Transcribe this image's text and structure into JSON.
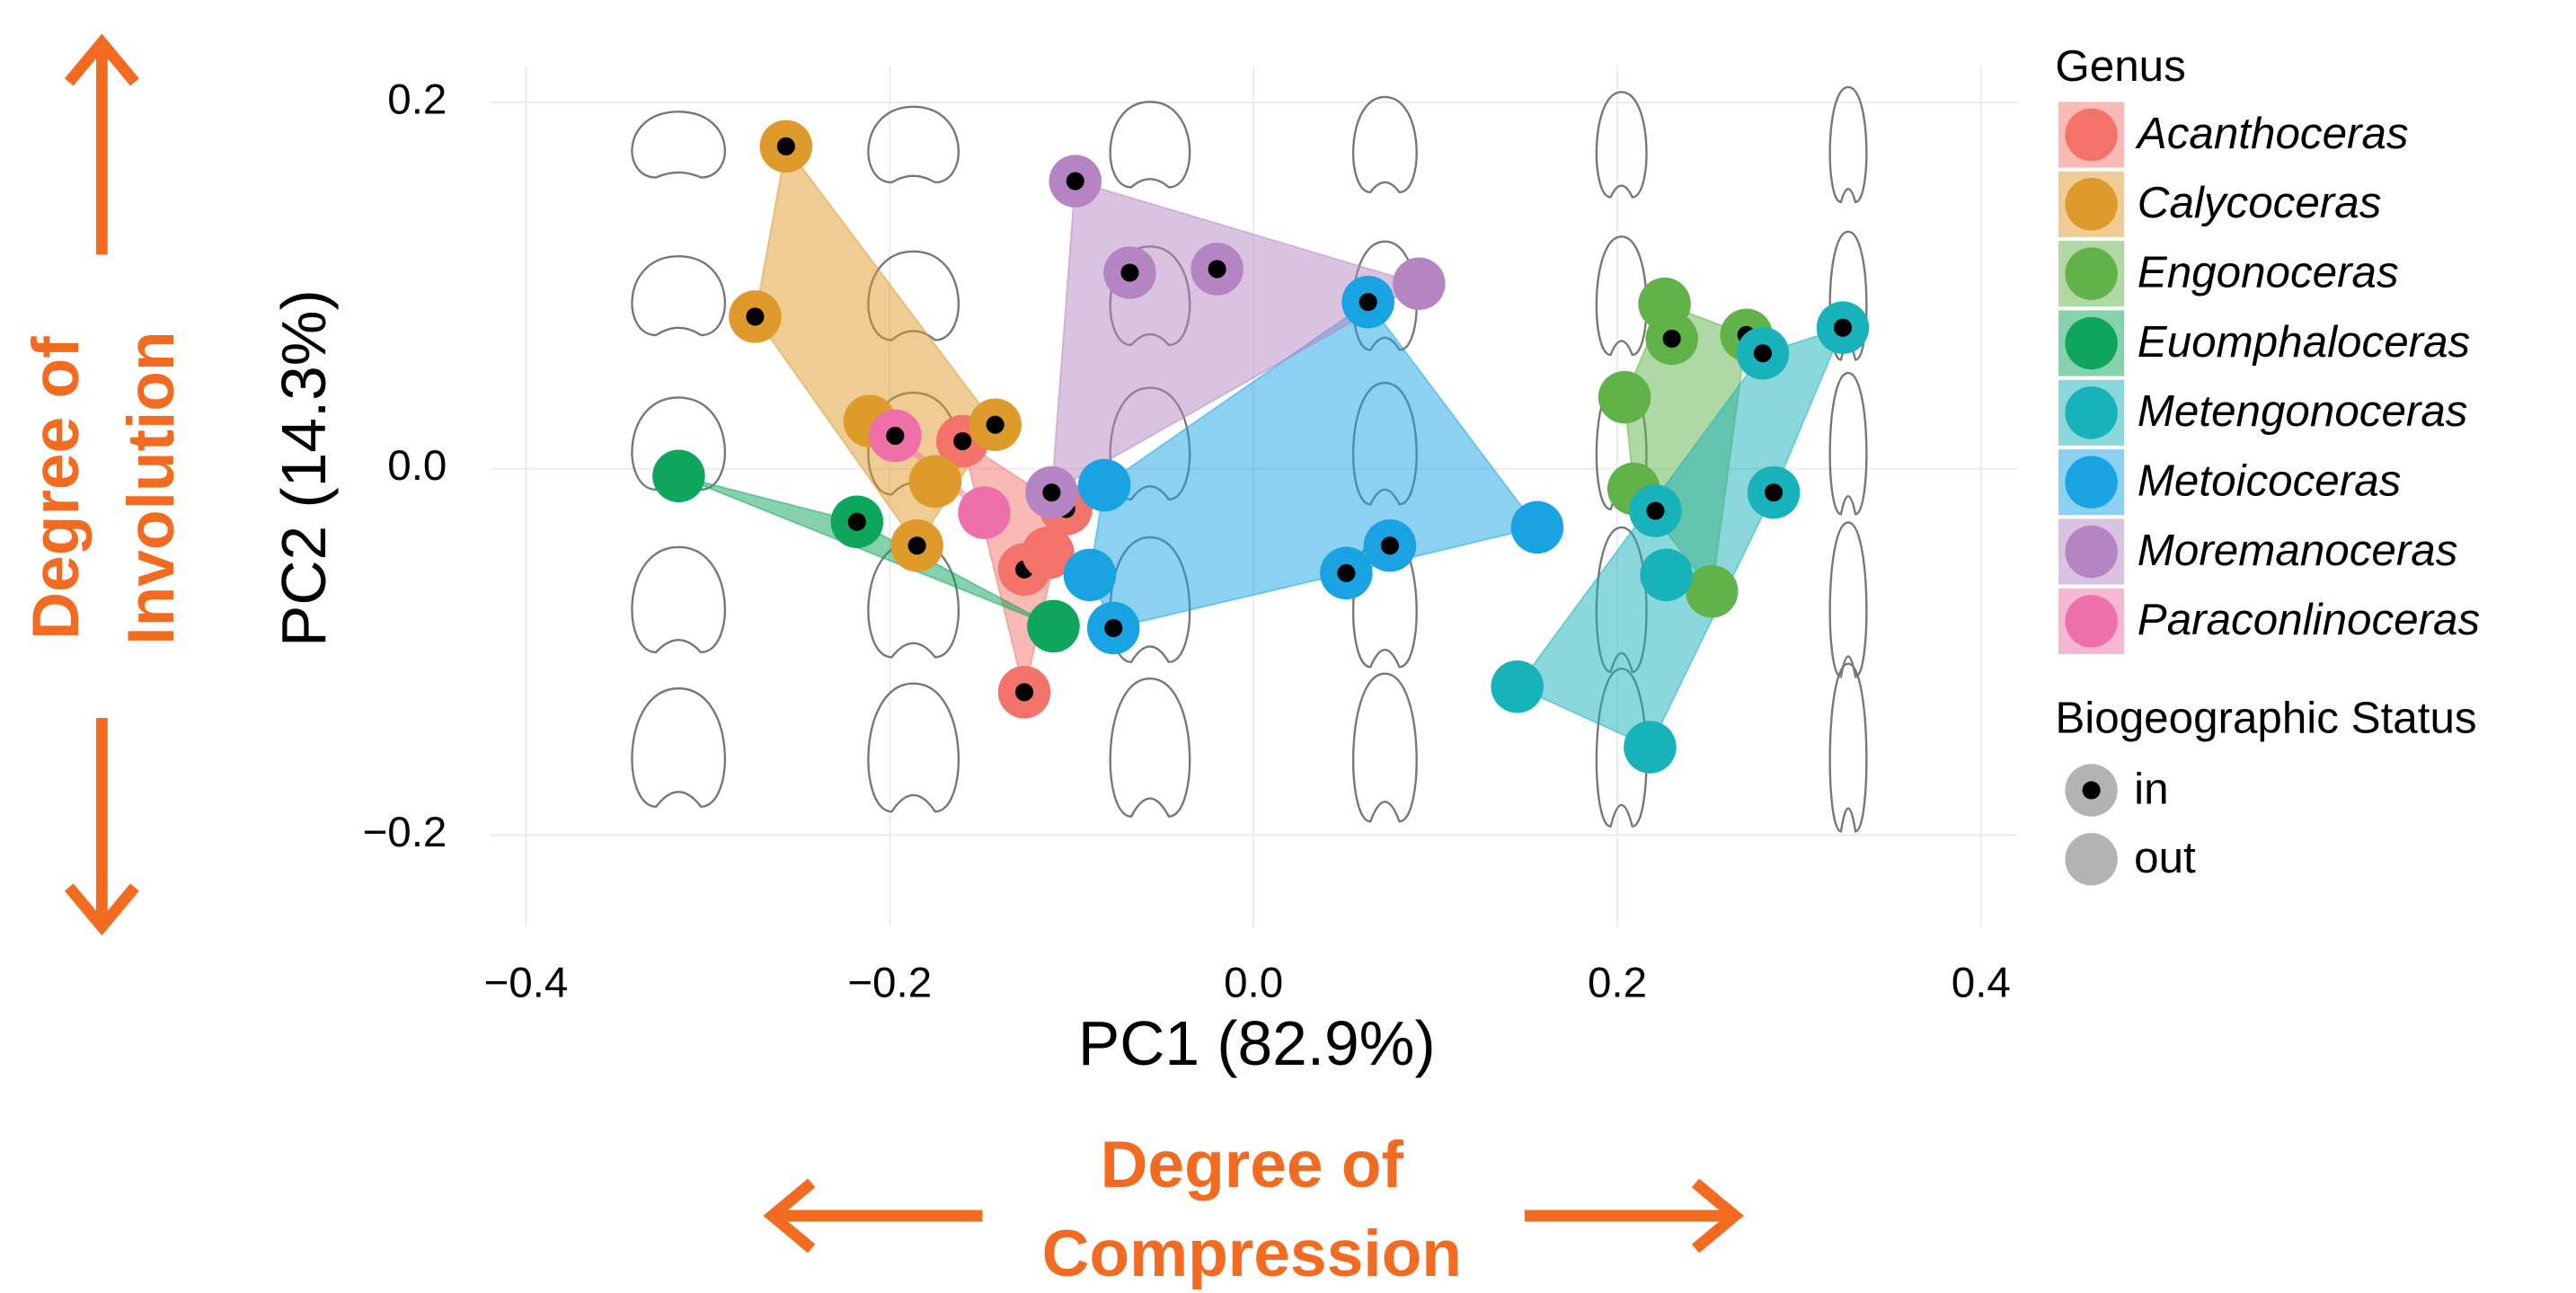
{
  "chart_data": {
    "type": "scatter",
    "xlabel": "PC1 (82.9%)",
    "ylabel": "PC2 (14.3%)",
    "xlim": [
      -0.42,
      0.42
    ],
    "ylim": [
      -0.25,
      0.22
    ],
    "xticks": [
      {
        "value": -0.4,
        "label": "−0.4"
      },
      {
        "value": -0.2,
        "label": "−0.2"
      },
      {
        "value": 0,
        "label": "0.0"
      },
      0.2,
      0.4
    ],
    "yticks": [
      {
        "value": -0.2,
        "label": "−0.2"
      },
      {
        "value": 0,
        "label": "0.0"
      },
      0.2
    ],
    "grid": true,
    "legend_title": "Genus",
    "status_title": "Biogeographic Status",
    "status_levels": [
      "in",
      "out"
    ],
    "annotations": {
      "vertical": [
        "Degree of",
        "Involution"
      ],
      "horizontal": [
        "Degree of",
        "Compression"
      ]
    },
    "series": [
      {
        "name": "Acanthoceras",
        "color": "#F3736B",
        "x": [
          -0.16,
          -0.126,
          -0.103,
          -0.113,
          -0.126
        ],
        "values": [
          0.015,
          -0.055,
          -0.022,
          -0.046,
          -0.122
        ],
        "status": [
          "in",
          "in",
          "in",
          "out",
          "in"
        ]
      },
      {
        "name": "Calycoceras",
        "color": "#DE9A2A",
        "x": [
          -0.257,
          -0.274,
          -0.211,
          -0.142,
          -0.175,
          -0.185
        ],
        "values": [
          0.176,
          0.083,
          0.026,
          0.024,
          -0.007,
          -0.042
        ],
        "status": [
          "in",
          "in",
          "out",
          "in",
          "out",
          "in"
        ]
      },
      {
        "name": "Engonoceras",
        "color": "#62B24A",
        "x": [
          0.226,
          0.23,
          0.271,
          0.204,
          0.209,
          0.252
        ],
        "values": [
          0.09,
          0.071,
          0.073,
          0.039,
          -0.011,
          -0.067
        ],
        "status": [
          "out",
          "in",
          "in",
          "out",
          "out",
          "out"
        ]
      },
      {
        "name": "Euomphaloceras",
        "color": "#0EA55C",
        "x": [
          -0.316,
          -0.218,
          -0.11
        ],
        "values": [
          -0.004,
          -0.029,
          -0.086
        ],
        "status": [
          "out",
          "in",
          "out"
        ]
      },
      {
        "name": "Metengonoceras",
        "color": "#18B2BA",
        "x": [
          0.324,
          0.28,
          0.286,
          0.221,
          0.227,
          0.145,
          0.218
        ],
        "values": [
          0.077,
          0.063,
          -0.013,
          -0.023,
          -0.058,
          -0.119,
          -0.152
        ],
        "status": [
          "in",
          "in",
          "in",
          "in",
          "out",
          "out",
          "out"
        ]
      },
      {
        "name": "Metoicoceras",
        "color": "#1AA3E3",
        "x": [
          0.063,
          -0.082,
          -0.09,
          -0.077,
          0.051,
          0.075,
          0.156
        ],
        "values": [
          0.091,
          -0.009,
          -0.058,
          -0.087,
          -0.057,
          -0.042,
          -0.032
        ],
        "status": [
          "in",
          "out",
          "out",
          "in",
          "in",
          "in",
          "out"
        ]
      },
      {
        "name": "Moremanoceras",
        "color": "#B585C3",
        "x": [
          -0.098,
          -0.068,
          -0.02,
          0.091,
          -0.111
        ],
        "values": [
          0.157,
          0.107,
          0.109,
          0.101,
          -0.013
        ],
        "status": [
          "in",
          "in",
          "in",
          "out",
          "in"
        ]
      },
      {
        "name": "Paraconlinoceras",
        "color": "#EF6FA8",
        "x": [
          -0.197,
          -0.148
        ],
        "values": [
          0.018,
          -0.024
        ],
        "status": [
          "in",
          "out"
        ]
      }
    ]
  }
}
